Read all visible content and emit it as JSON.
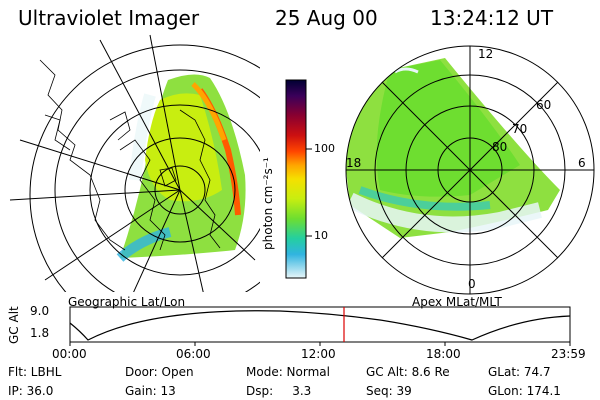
{
  "header": {
    "instrument": "Ultraviolet Imager",
    "date": "25 Aug 00",
    "time": "13:24:12 UT"
  },
  "left_panel": {
    "caption": "Geographic Lat/Lon"
  },
  "right_panel": {
    "caption": "Apex MLat/MLT",
    "mlt_labels": [
      "12",
      "18",
      "6",
      "0"
    ],
    "lat_labels": [
      "60",
      "70",
      "80"
    ]
  },
  "colorbar": {
    "unit_label": "photon cm⁻²s⁻¹",
    "tick_labels": [
      "100",
      "10"
    ],
    "scale": "log",
    "colors": [
      "#000033",
      "#3a005a",
      "#8a0030",
      "#cc1010",
      "#ff4500",
      "#ffa500",
      "#f5e000",
      "#c8ee10",
      "#6ede30",
      "#24cfa0",
      "#30b4e0",
      "#e8f6f8"
    ]
  },
  "altitude_plot": {
    "y_axis_label": "GC Alt",
    "y_ticks": [
      "9.0",
      "1.8"
    ],
    "x_ticks": [
      "00:00",
      "06:00",
      "12:00",
      "18:00",
      "23:59"
    ],
    "current_time_marker": "13:24",
    "marker_color": "#dd0000"
  },
  "info": {
    "row1": [
      "Flt: LBHL",
      "Door: Open",
      "Mode: Normal",
      "GC Alt: 8.6 Re",
      "GLat:  74.7"
    ],
    "row2": [
      "IP: 36.0",
      "Gain: 13",
      "Dsp:     3.3",
      "Seq: 39",
      "GLon: 174.1"
    ]
  }
}
